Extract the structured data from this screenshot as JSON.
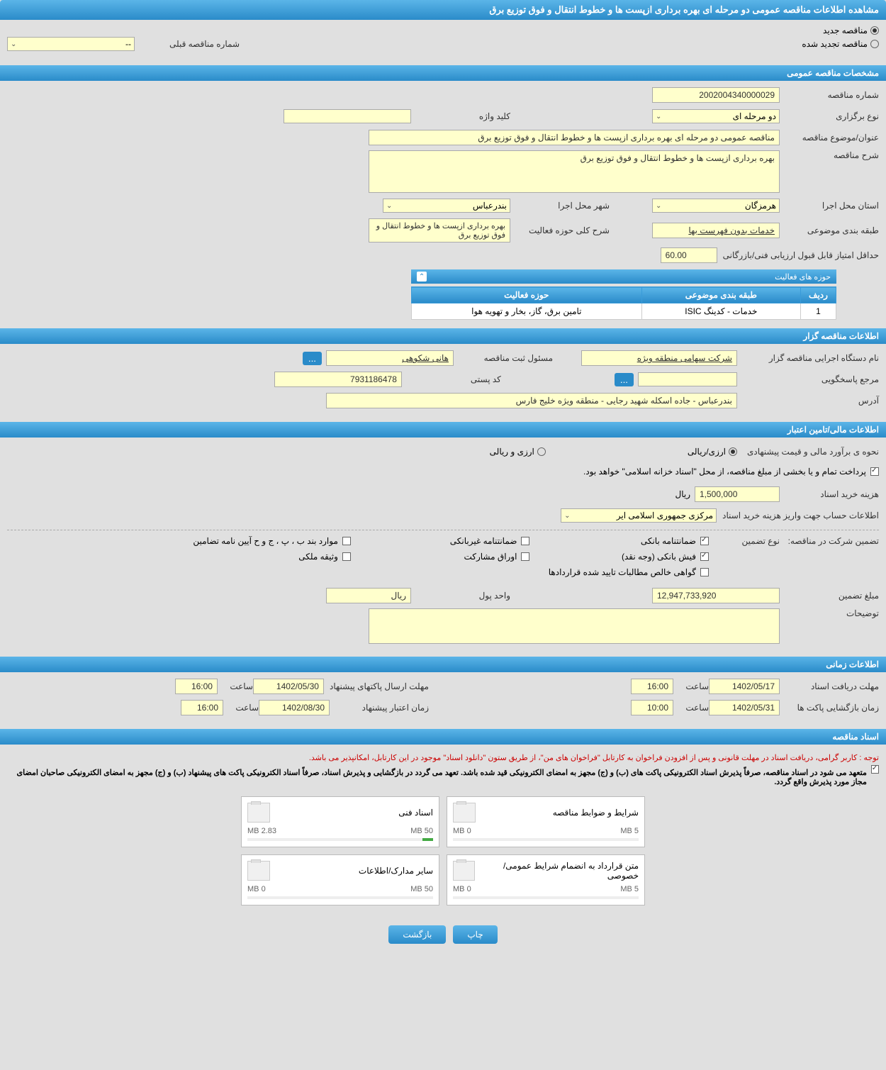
{
  "page_title": "مشاهده اطلاعات مناقصه عمومی دو مرحله ای بهره برداری ازپست ها و خطوط انتقال و فوق توزیع برق",
  "tender_type": {
    "new_label": "مناقصه جدید",
    "renewed_label": "مناقصه تجدید شده",
    "selected": "new"
  },
  "prev_tender_label": "شماره مناقصه قبلی",
  "prev_tender_value": "--",
  "sections": {
    "general": "مشخصات مناقصه عمومی",
    "organizer": "اطلاعات مناقصه گزار",
    "financial": "اطلاعات مالی/تامین اعتبار",
    "timing": "اطلاعات زمانی",
    "documents": "اسناد مناقصه"
  },
  "general": {
    "tender_no_label": "شماره مناقصه",
    "tender_no": "2002004340000029",
    "holding_type_label": "نوع برگزاری",
    "holding_type": "دو مرحله ای",
    "keyword_label": "کلید واژه",
    "keyword": "",
    "title_label": "عنوان/موضوع مناقصه",
    "title": "مناقصه عمومی دو مرحله ای بهره برداری ازپست ها و خطوط انتقال و فوق توزیع برق",
    "description_label": "شرح مناقصه",
    "description": "بهره برداری ازپست ها و خطوط انتقال و فوق توزیع برق",
    "province_label": "استان محل اجرا",
    "province": "هرمزگان",
    "city_label": "شهر محل اجرا",
    "city": "بندرعباس",
    "category_label": "طبقه بندی موضوعی",
    "category": "خدمات بدون فهرست بها",
    "activity_desc_label": "شرح کلی حوزه فعالیت",
    "activity_desc": "بهره برداری ازپست ها و خطوط انتقال و فوق توزیع برق",
    "min_score_label": "حداقل امتیاز قابل قبول ارزیابی فنی/بازرگانی",
    "min_score": "60.00"
  },
  "activity_table": {
    "title": "حوزه های فعالیت",
    "cols": [
      "ردیف",
      "طبقه بندی موضوعی",
      "حوزه فعالیت"
    ],
    "rows": [
      [
        "1",
        "خدمات - کدینگ ISIC",
        "تامین برق، گاز، بخار و تهویه هوا"
      ]
    ]
  },
  "organizer": {
    "org_name_label": "نام دستگاه اجرایی مناقصه گزار",
    "org_name": "شرکت سهامی منطقه ویژه",
    "responsible_label": "مسئول ثبت مناقصه",
    "responsible": "هانی شکوهی",
    "contact_ref_label": "مرجع پاسخگویی",
    "contact_ref": "",
    "postal_code_label": "کد پستی",
    "postal_code": "7931186478",
    "address_label": "آدرس",
    "address": "بندرعباس - جاده اسکله شهید رجایی - منطقه ویژه خلیج فارس"
  },
  "financial": {
    "estimate_label": "نحوه ی برآورد مالی و قیمت پیشنهادی",
    "rial_label": "ارزی/ریالی",
    "currency_label": "ارزی و ریالی",
    "payment_note": "پرداخت تمام و یا بخشی از مبلغ مناقصه، از محل \"اسناد خزانه اسلامی\" خواهد بود.",
    "doc_cost_label": "هزینه خرید اسناد",
    "doc_cost": "1,500,000",
    "doc_cost_unit": "ریال",
    "bank_account_label": "اطلاعات حساب جهت واریز هزینه خرید اسناد",
    "bank_account": "مرکزی جمهوری اسلامی ایر",
    "guarantee_label": "تضمین شرکت در مناقصه:",
    "guarantee_type_label": "نوع تضمین",
    "guarantees": {
      "bank_guarantee": "ضمانتنامه بانکی",
      "non_bank_guarantee": "ضمانتنامه غیربانکی",
      "items_b_p": "موارد بند ب ، پ ، ج و ح آیین نامه تضامین",
      "bank_receipt": "فیش بانکی (وجه نقد)",
      "participation_bonds": "اوراق مشارکت",
      "property_deposit": "وثیقه ملکی",
      "approved_receivables": "گواهی خالص مطالبات تایید شده قراردادها"
    },
    "guarantee_amount_label": "مبلغ تضمین",
    "guarantee_amount": "12,947,733,920",
    "currency_unit_label": "واحد پول",
    "currency_unit": "ریال",
    "notes_label": "توضیحات",
    "notes": ""
  },
  "timing": {
    "doc_receive_label": "مهلت دریافت اسناد",
    "doc_receive_date": "1402/05/17",
    "time_label": "ساعت",
    "doc_receive_time": "16:00",
    "packet_send_label": "مهلت ارسال پاکتهای پیشنهاد",
    "packet_send_date": "1402/05/30",
    "packet_send_time": "16:00",
    "packet_open_label": "زمان بازگشایی پاکت ها",
    "packet_open_date": "1402/05/31",
    "packet_open_time": "10:00",
    "validity_label": "زمان اعتبار پیشنهاد",
    "validity_date": "1402/08/30",
    "validity_time": "16:00"
  },
  "documents": {
    "note1": "توجه : کاربر گرامی، دریافت اسناد در مهلت قانونی و پس از افزودن فراخوان به کارتابل \"فراخوان های من\"، از طریق ستون \"دانلود اسناد\" موجود در این کارتابل، امکانپذیر می باشد.",
    "note2": "متعهد می شود در اسناد مناقصه، صرفاً پذیرش اسناد الکترونیکی پاکت های (ب) و (ج) مجهز به امضای الکترونیکی قید شده باشد. تعهد می گردد در بازگشایی و پذیرش اسناد، صرفاً اسناد الکترونیکی پاکت های پیشنهاد (ب) و (ج) مجهز به امضای الکترونیکی صاحبان امضای مجاز مورد پذیرش واقع گردد.",
    "files": [
      {
        "name": "شرایط و ضوابط مناقصه",
        "limit": "5 MB",
        "used": "0 MB",
        "progress": 0
      },
      {
        "name": "اسناد فنی",
        "limit": "50 MB",
        "used": "2.83 MB",
        "progress": 5.66
      },
      {
        "name": "متن قرارداد به انضمام شرایط عمومی/خصوصی",
        "limit": "5 MB",
        "used": "0 MB",
        "progress": 0
      },
      {
        "name": "سایر مدارک/اطلاعات",
        "limit": "50 MB",
        "used": "0 MB",
        "progress": 0
      }
    ]
  },
  "buttons": {
    "print": "چاپ",
    "back": "بازگشت"
  }
}
